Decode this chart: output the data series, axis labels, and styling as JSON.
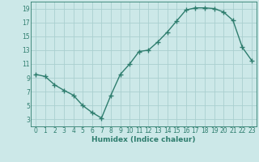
{
  "x": [
    0,
    1,
    2,
    3,
    4,
    5,
    6,
    7,
    8,
    9,
    10,
    11,
    12,
    13,
    14,
    15,
    16,
    17,
    18,
    19,
    20,
    21,
    22,
    23
  ],
  "y": [
    9.5,
    9.2,
    8.0,
    7.2,
    6.5,
    5.0,
    4.0,
    3.2,
    6.5,
    9.5,
    11.0,
    12.8,
    13.0,
    14.2,
    15.6,
    17.2,
    18.8,
    19.1,
    19.1,
    19.0,
    18.5,
    17.3,
    13.4,
    11.5
  ],
  "xlabel": "Humidex (Indice chaleur)",
  "xlim": [
    -0.5,
    23.5
  ],
  "ylim": [
    2,
    20
  ],
  "yticks": [
    3,
    5,
    7,
    9,
    11,
    13,
    15,
    17,
    19
  ],
  "xticks": [
    0,
    1,
    2,
    3,
    4,
    5,
    6,
    7,
    8,
    9,
    10,
    11,
    12,
    13,
    14,
    15,
    16,
    17,
    18,
    19,
    20,
    21,
    22,
    23
  ],
  "line_color": "#2e7d6e",
  "marker_color": "#2e7d6e",
  "bg_color": "#cce8e8",
  "grid_color": "#aacfcf",
  "axis_color": "#2e7d6e",
  "label_fontsize": 6.5,
  "tick_fontsize": 5.5
}
